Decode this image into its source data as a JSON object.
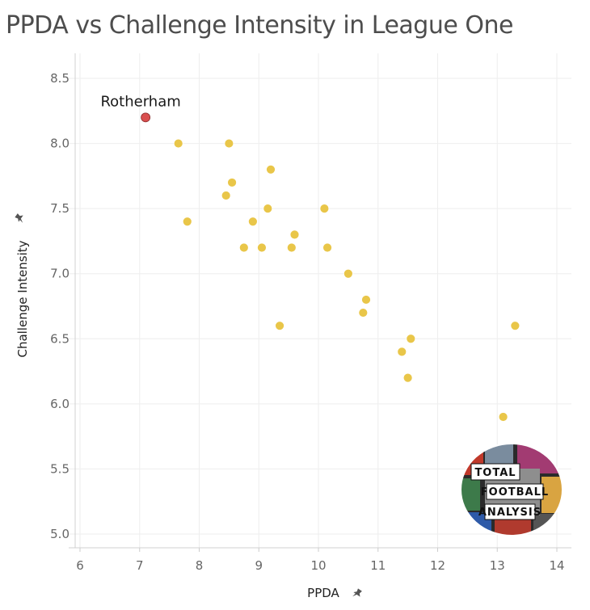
{
  "chart_data": {
    "type": "scatter",
    "title": "PPDA vs Challenge Intensity in League One",
    "xlabel": "PPDA",
    "ylabel": "Challenge Intensity",
    "xlim": [
      6,
      14
    ],
    "ylim": [
      5.0,
      8.5
    ],
    "x_ticks": [
      "6",
      "7",
      "8",
      "9",
      "10",
      "11",
      "12",
      "13",
      "14"
    ],
    "y_ticks": [
      "5.0",
      "5.5",
      "6.0",
      "6.5",
      "7.0",
      "7.5",
      "8.0",
      "8.5"
    ],
    "highlight": {
      "label": "Rotherham",
      "x": 7.1,
      "y": 8.2,
      "color": "#d94f4f"
    },
    "point_color": "#e8c33f",
    "points": [
      {
        "x": 7.65,
        "y": 8.0
      },
      {
        "x": 8.5,
        "y": 8.0
      },
      {
        "x": 9.2,
        "y": 7.8
      },
      {
        "x": 8.55,
        "y": 7.7
      },
      {
        "x": 8.45,
        "y": 7.6
      },
      {
        "x": 9.15,
        "y": 7.5
      },
      {
        "x": 10.1,
        "y": 7.5
      },
      {
        "x": 7.8,
        "y": 7.4
      },
      {
        "x": 8.9,
        "y": 7.4
      },
      {
        "x": 9.6,
        "y": 7.3
      },
      {
        "x": 8.75,
        "y": 7.2
      },
      {
        "x": 9.05,
        "y": 7.2
      },
      {
        "x": 9.55,
        "y": 7.2
      },
      {
        "x": 10.15,
        "y": 7.2
      },
      {
        "x": 10.5,
        "y": 7.0
      },
      {
        "x": 10.8,
        "y": 6.8
      },
      {
        "x": 10.75,
        "y": 6.7
      },
      {
        "x": 9.35,
        "y": 6.6
      },
      {
        "x": 13.3,
        "y": 6.6
      },
      {
        "x": 11.55,
        "y": 6.5
      },
      {
        "x": 11.4,
        "y": 6.4
      },
      {
        "x": 11.5,
        "y": 6.2
      },
      {
        "x": 13.1,
        "y": 5.9
      }
    ]
  },
  "logo": {
    "line1": "TOTAL",
    "line2": "FOOTBALL",
    "line3": "ANALYSIS"
  },
  "icons": {
    "pin": "pin-icon"
  }
}
